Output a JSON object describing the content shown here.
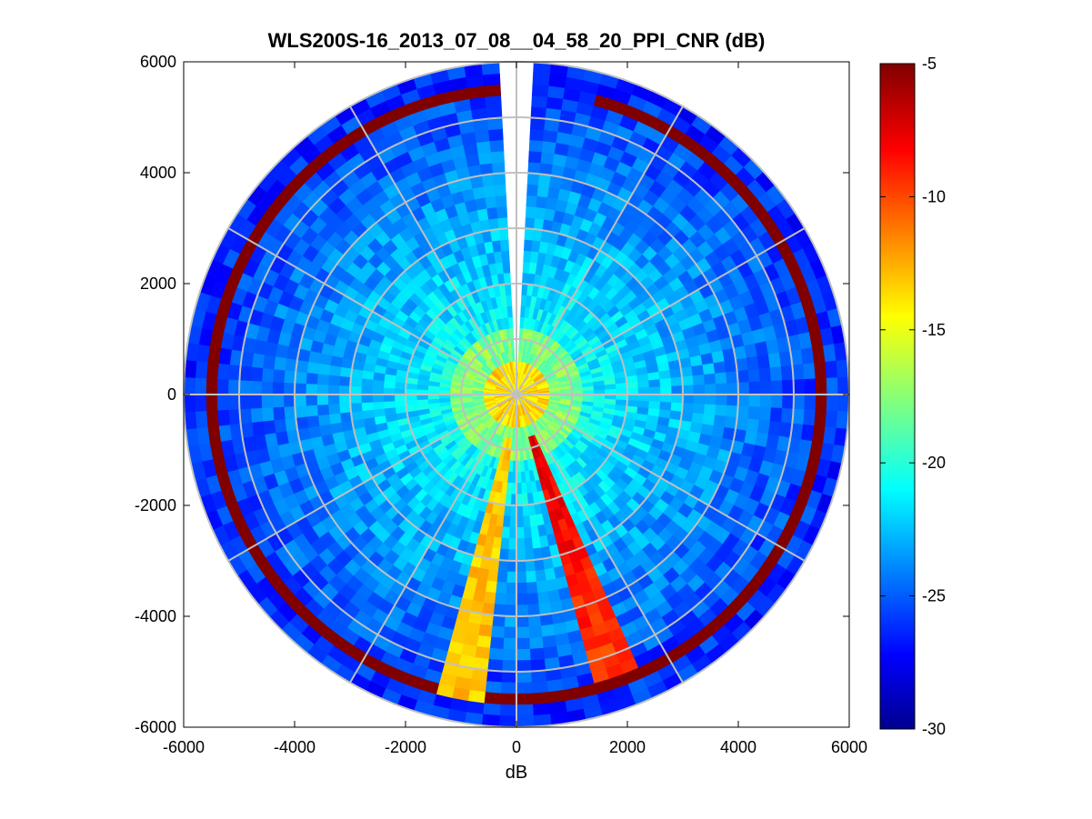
{
  "chart_data": {
    "type": "heatmap",
    "subtype": "polar-ppi",
    "title": "WLS200S-16_2013_07_08__04_58_20_PPI_CNR (dB)",
    "xlabel": "dB",
    "ylabel": "",
    "xlim": [
      -6000,
      6000
    ],
    "ylim": [
      -6000,
      6000
    ],
    "x_ticks": [
      "-6000",
      "-4000",
      "-2000",
      "0",
      "2000",
      "4000",
      "6000"
    ],
    "y_ticks": [
      "6000",
      "4000",
      "2000",
      "0",
      "-2000",
      "-4000",
      "-6000"
    ],
    "max_range": 6000,
    "range_rings": [
      1000,
      2000,
      3000,
      4000,
      5000,
      6000
    ],
    "spoke_angles_deg": [
      0,
      30,
      60,
      90,
      120,
      150,
      180,
      210,
      240,
      270,
      300,
      330
    ],
    "colorbar": {
      "colormap": "jet",
      "min": -30,
      "max": -5,
      "ticks": [
        "-5",
        "-10",
        "-15",
        "-20",
        "-25",
        "-30"
      ]
    },
    "features": [
      {
        "name": "hard-target-ring",
        "range_m": 5500,
        "value_db": -5
      },
      {
        "name": "strong-beam",
        "azimuth_deg": 160,
        "value_db": -7
      },
      {
        "name": "bright-beam",
        "azimuth_deg": 190,
        "value_db": -14
      },
      {
        "name": "blocked-sector",
        "azimuth_deg": 0,
        "value_db": null
      }
    ],
    "grid": true
  }
}
